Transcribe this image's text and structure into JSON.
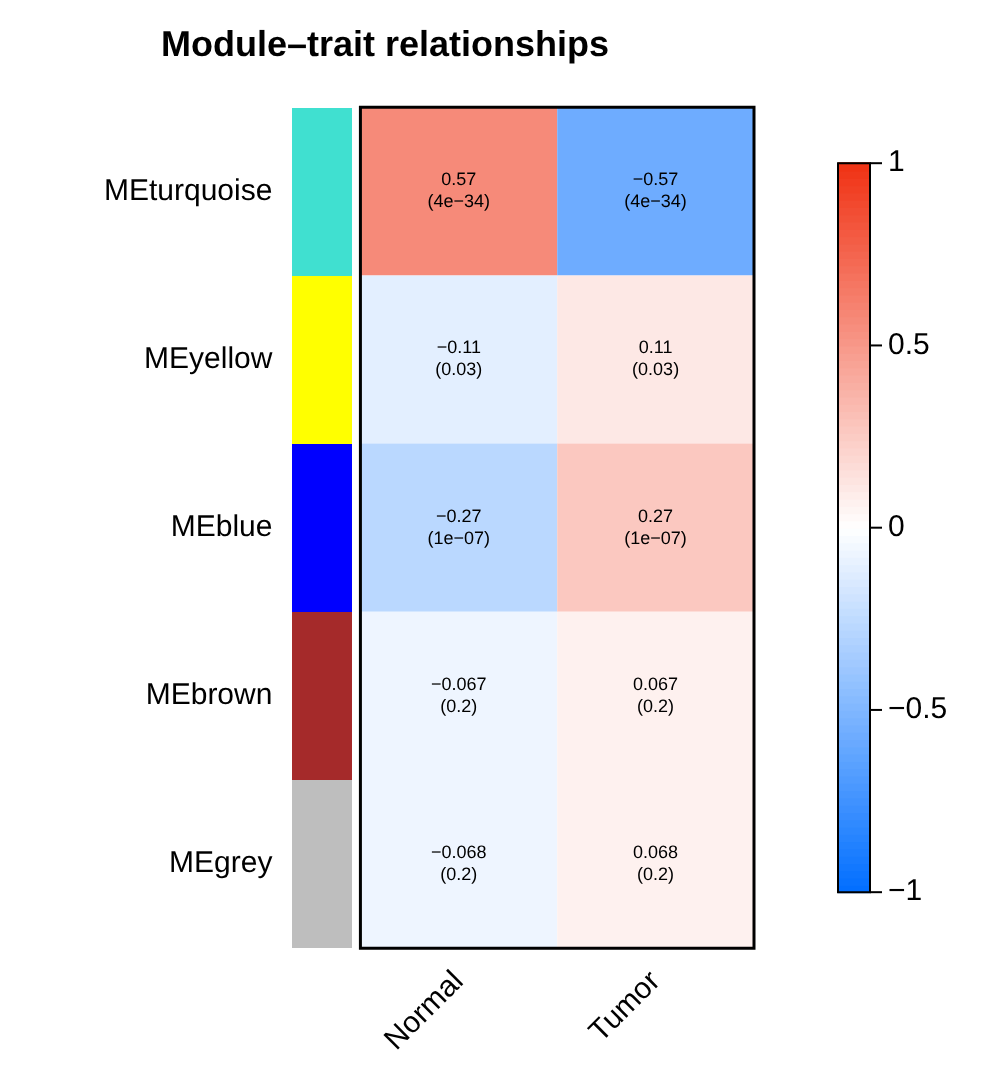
{
  "chart_data": {
    "type": "heatmap",
    "title": "Module–trait relationships",
    "categories": [
      "Normal",
      "Tumor"
    ],
    "y_categories": [
      "MEturquoise",
      "MEyellow",
      "MEblue",
      "MEbrown",
      "MEgrey"
    ],
    "cells": [
      [
        0.57,
        -0.57
      ],
      [
        -0.11,
        0.11
      ],
      [
        -0.27,
        0.27
      ],
      [
        -0.067,
        0.067
      ],
      [
        -0.068,
        0.068
      ]
    ],
    "cell_labels": [
      [
        "0.57\n(4e−34)",
        "−0.57\n(4e−34)"
      ],
      [
        "−0.11\n(0.03)",
        "0.11\n(0.03)"
      ],
      [
        "−0.27\n(1e−07)",
        "0.27\n(1e−07)"
      ],
      [
        "−0.067\n(0.2)",
        "0.067\n(0.2)"
      ],
      [
        "−0.068\n(0.2)",
        "0.068\n(0.2)"
      ]
    ],
    "clim": [
      -1,
      1
    ],
    "cticks": [
      {
        "value": -1,
        "label": "−1"
      },
      {
        "value": -0.5,
        "label": "−0.5"
      },
      0,
      0.5,
      1
    ]
  }
}
